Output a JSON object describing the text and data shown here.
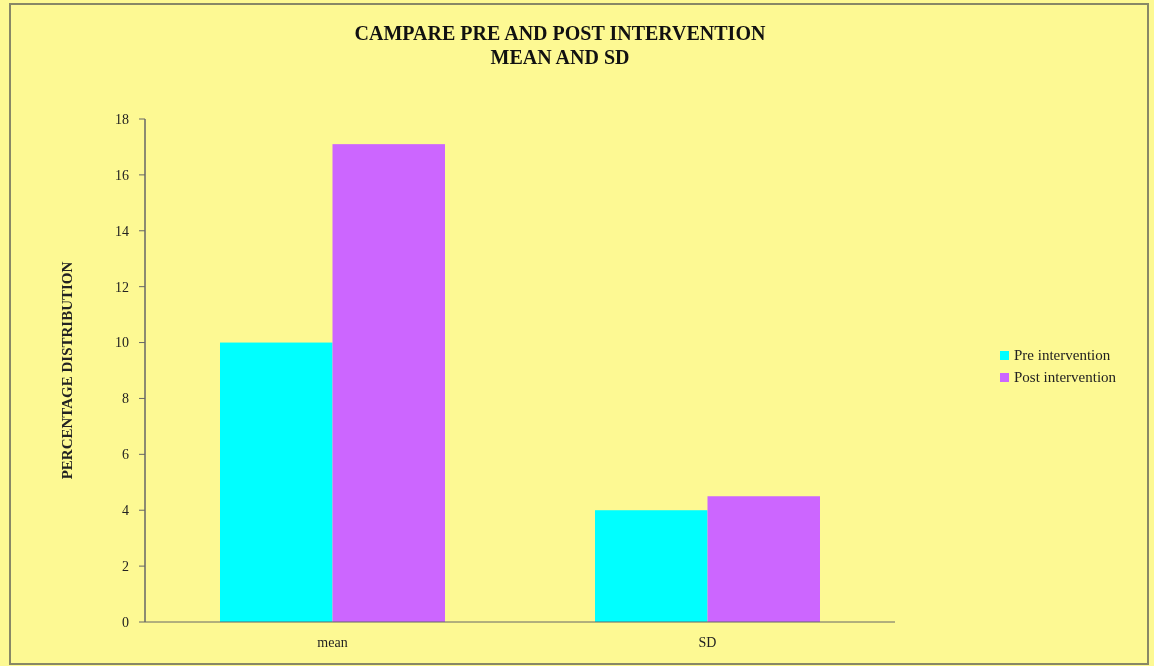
{
  "chart_data": {
    "type": "bar",
    "title": "CAMPARE PRE AND POST INTERVENTION MEAN AND SD",
    "ylabel": "PERCENTAGE DISTRIBUTION",
    "categories": [
      "mean",
      "SD"
    ],
    "series": [
      {
        "name": "Pre intervention",
        "color": "#00ffff",
        "values": [
          10,
          4.0
        ]
      },
      {
        "name": "Post intervention",
        "color": "#cc66ff",
        "values": [
          17.1,
          4.5
        ]
      }
    ],
    "ylim": [
      0,
      18
    ],
    "yticks": [
      0,
      2,
      4,
      6,
      8,
      10,
      12,
      14,
      16,
      18
    ],
    "grid": false,
    "legend": "right"
  }
}
